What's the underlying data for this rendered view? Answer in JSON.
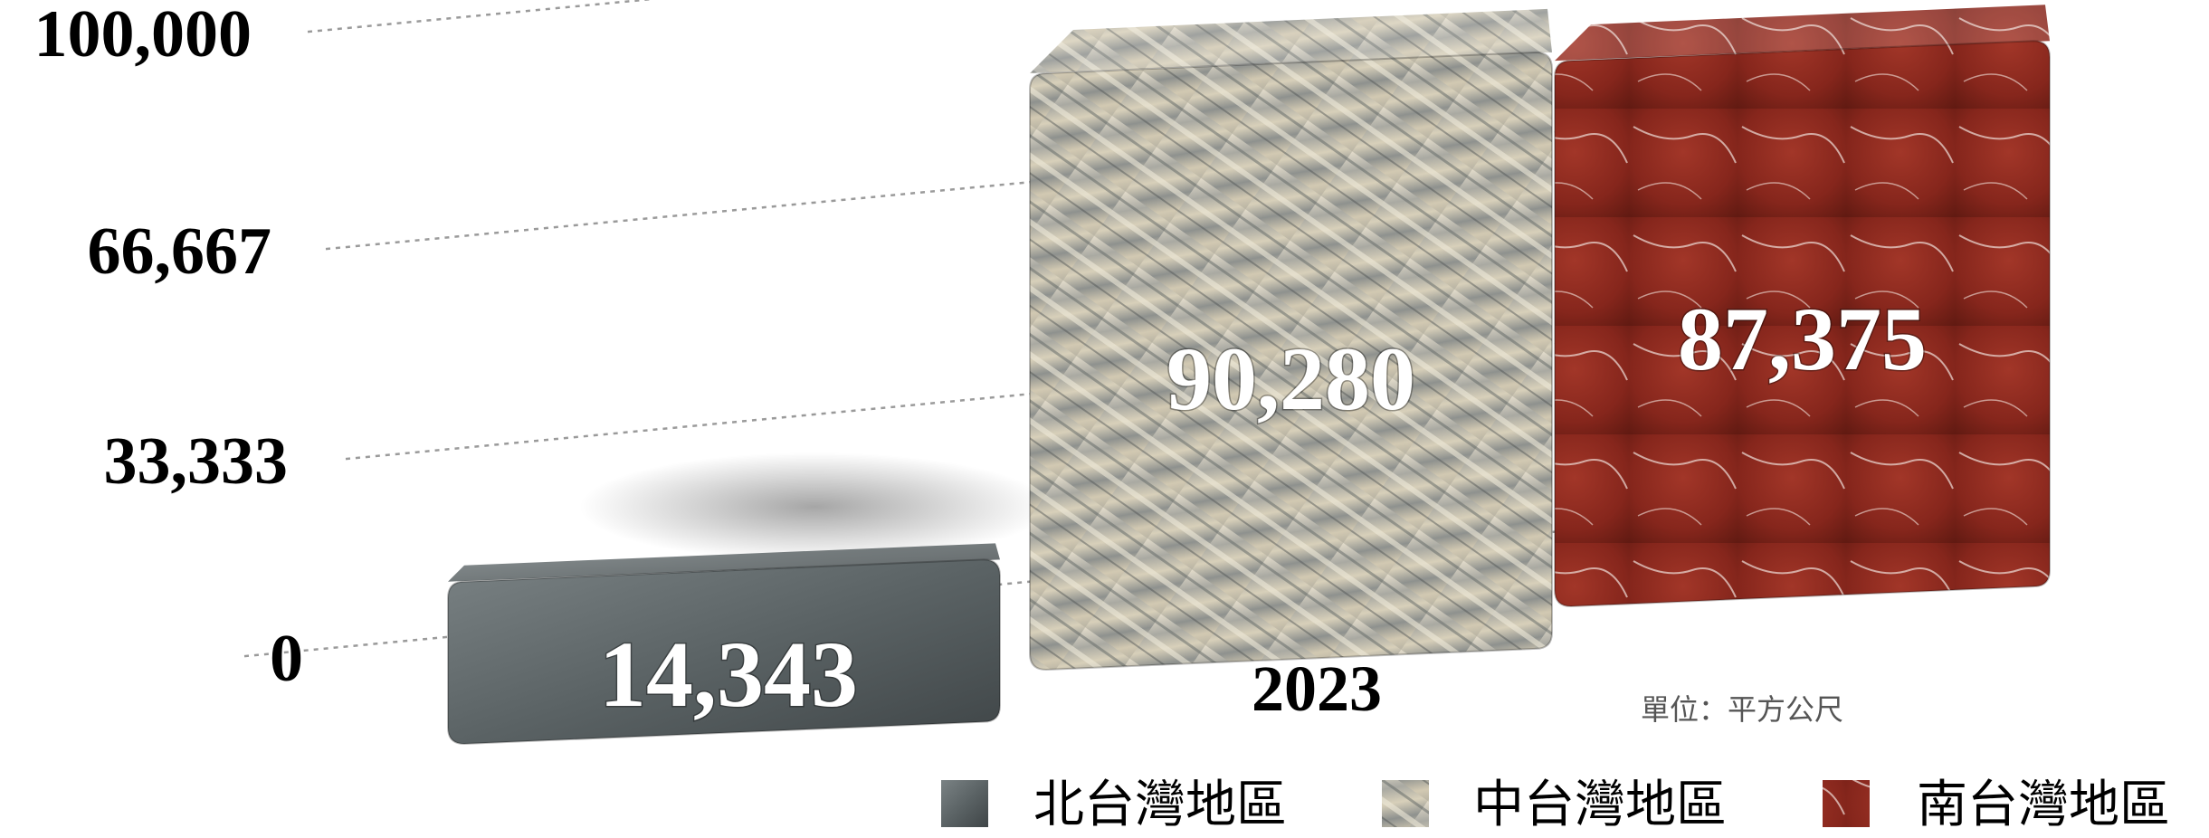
{
  "chart_data": {
    "type": "bar",
    "categories": [
      "2023"
    ],
    "series": [
      {
        "name": "北台灣地區",
        "values": [
          14343
        ],
        "color": "#5c6466",
        "value_label": "14,343"
      },
      {
        "name": "中台灣地區",
        "values": [
          90280
        ],
        "color": "#cfc8b4",
        "value_label": "90,280"
      },
      {
        "name": "南台灣地區",
        "values": [
          87375
        ],
        "color": "#8e2a1f",
        "value_label": "87,375"
      }
    ],
    "y_ticks": [
      "0",
      "33,333",
      "66,667",
      "100,000"
    ],
    "y_tick_values": [
      0,
      33333,
      66667,
      100000
    ],
    "ylim": [
      0,
      100000
    ],
    "unit": "單位：平方公尺",
    "legend_position": "bottom-right",
    "grid": true
  }
}
